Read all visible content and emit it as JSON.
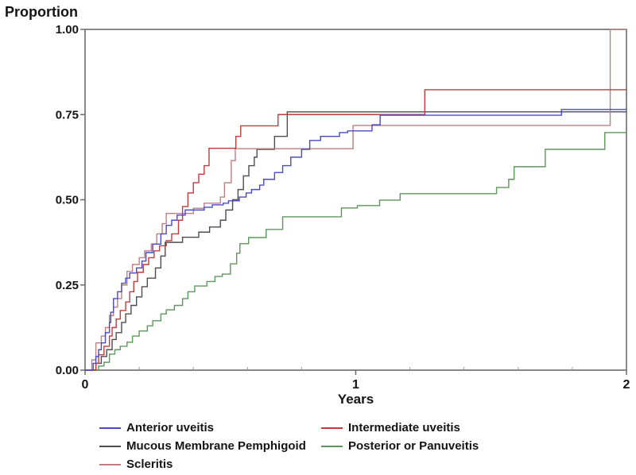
{
  "chart": {
    "axis_color": "#6a6a6a",
    "minor_tick_color": "#9a9a9a",
    "text_color": "#141414",
    "y_ticks": [
      {
        "label": "0.00",
        "value": 0.0
      },
      {
        "label": "0.25",
        "value": 0.25
      },
      {
        "label": "0.50",
        "value": 0.5
      },
      {
        "label": "0.75",
        "value": 0.75
      },
      {
        "label": "1.00",
        "value": 1.0
      }
    ],
    "x_ticks_major": [
      {
        "label": "0",
        "value": 0
      },
      {
        "label": "1",
        "value": 1
      },
      {
        "label": "2",
        "value": 2
      }
    ],
    "x_minor_ticks": [
      0.2,
      0.4,
      0.6,
      0.8,
      1.2,
      1.4,
      1.6,
      1.8
    ]
  },
  "chart_data": {
    "type": "line",
    "subtype": "step-after",
    "title": "",
    "xlabel": "Years",
    "ylabel": "Proportion",
    "xlim": [
      0,
      2
    ],
    "ylim": [
      0,
      1
    ],
    "grid": false,
    "legend_position": "bottom",
    "series": [
      {
        "name": "Anterior uveitis",
        "color": "#4a4ac4",
        "points": [
          [
            0,
            0
          ],
          [
            0.03,
            0.02
          ],
          [
            0.04,
            0.04
          ],
          [
            0.05,
            0.06
          ],
          [
            0.06,
            0.08
          ],
          [
            0.075,
            0.11
          ],
          [
            0.09,
            0.14
          ],
          [
            0.095,
            0.17
          ],
          [
            0.105,
            0.21
          ],
          [
            0.12,
            0.23
          ],
          [
            0.135,
            0.255
          ],
          [
            0.15,
            0.27
          ],
          [
            0.165,
            0.285
          ],
          [
            0.19,
            0.3
          ],
          [
            0.21,
            0.32
          ],
          [
            0.225,
            0.345
          ],
          [
            0.25,
            0.37
          ],
          [
            0.28,
            0.4
          ],
          [
            0.3,
            0.425
          ],
          [
            0.32,
            0.44
          ],
          [
            0.34,
            0.455
          ],
          [
            0.37,
            0.47
          ],
          [
            0.44,
            0.478
          ],
          [
            0.47,
            0.485
          ],
          [
            0.51,
            0.49
          ],
          [
            0.53,
            0.497
          ],
          [
            0.57,
            0.508
          ],
          [
            0.595,
            0.52
          ],
          [
            0.615,
            0.53
          ],
          [
            0.645,
            0.543
          ],
          [
            0.66,
            0.56
          ],
          [
            0.7,
            0.58
          ],
          [
            0.73,
            0.6
          ],
          [
            0.76,
            0.625
          ],
          [
            0.8,
            0.648
          ],
          [
            0.83,
            0.674
          ],
          [
            0.87,
            0.686
          ],
          [
            0.94,
            0.697
          ],
          [
            0.97,
            0.702
          ],
          [
            1.06,
            0.72
          ],
          [
            1.09,
            0.748
          ],
          [
            1.76,
            0.765
          ],
          [
            2,
            0.765
          ]
        ]
      },
      {
        "name": "Intermediate uveitis",
        "color": "#c23b3b",
        "points": [
          [
            0,
            0
          ],
          [
            0.04,
            0.02
          ],
          [
            0.05,
            0.045
          ],
          [
            0.07,
            0.07
          ],
          [
            0.09,
            0.1
          ],
          [
            0.1,
            0.125
          ],
          [
            0.115,
            0.15
          ],
          [
            0.13,
            0.175
          ],
          [
            0.15,
            0.2
          ],
          [
            0.165,
            0.23
          ],
          [
            0.18,
            0.26
          ],
          [
            0.194,
            0.287
          ],
          [
            0.215,
            0.31
          ],
          [
            0.235,
            0.33
          ],
          [
            0.255,
            0.35
          ],
          [
            0.275,
            0.365
          ],
          [
            0.3,
            0.38
          ],
          [
            0.32,
            0.4
          ],
          [
            0.345,
            0.44
          ],
          [
            0.36,
            0.48
          ],
          [
            0.38,
            0.52
          ],
          [
            0.4,
            0.55
          ],
          [
            0.42,
            0.575
          ],
          [
            0.44,
            0.6
          ],
          [
            0.458,
            0.651
          ],
          [
            0.557,
            0.686
          ],
          [
            0.575,
            0.717
          ],
          [
            0.713,
            0.75
          ],
          [
            1.255,
            0.823
          ],
          [
            2,
            0.823
          ]
        ]
      },
      {
        "name": "Mucous Membrane Pemphigoid",
        "color": "#4d4d4d",
        "points": [
          [
            0,
            0
          ],
          [
            0.04,
            0.02
          ],
          [
            0.06,
            0.04
          ],
          [
            0.08,
            0.06
          ],
          [
            0.1,
            0.09
          ],
          [
            0.115,
            0.11
          ],
          [
            0.135,
            0.14
          ],
          [
            0.15,
            0.165
          ],
          [
            0.17,
            0.19
          ],
          [
            0.19,
            0.215
          ],
          [
            0.21,
            0.245
          ],
          [
            0.23,
            0.27
          ],
          [
            0.26,
            0.3
          ],
          [
            0.28,
            0.335
          ],
          [
            0.296,
            0.375
          ],
          [
            0.36,
            0.39
          ],
          [
            0.42,
            0.405
          ],
          [
            0.46,
            0.42
          ],
          [
            0.5,
            0.44
          ],
          [
            0.52,
            0.47
          ],
          [
            0.545,
            0.5
          ],
          [
            0.565,
            0.53
          ],
          [
            0.585,
            0.57
          ],
          [
            0.605,
            0.6
          ],
          [
            0.625,
            0.625
          ],
          [
            0.635,
            0.648
          ],
          [
            0.7,
            0.686
          ],
          [
            0.747,
            0.758
          ],
          [
            2,
            0.758
          ]
        ]
      },
      {
        "name": "Posterior or Panuveitis",
        "color": "#5d975d",
        "points": [
          [
            0,
            0
          ],
          [
            0.05,
            0.012
          ],
          [
            0.07,
            0.023
          ],
          [
            0.09,
            0.047
          ],
          [
            0.11,
            0.06
          ],
          [
            0.13,
            0.07
          ],
          [
            0.155,
            0.082
          ],
          [
            0.175,
            0.1
          ],
          [
            0.2,
            0.115
          ],
          [
            0.23,
            0.13
          ],
          [
            0.25,
            0.145
          ],
          [
            0.28,
            0.165
          ],
          [
            0.3,
            0.177
          ],
          [
            0.33,
            0.19
          ],
          [
            0.36,
            0.21
          ],
          [
            0.38,
            0.23
          ],
          [
            0.405,
            0.247
          ],
          [
            0.45,
            0.26
          ],
          [
            0.48,
            0.275
          ],
          [
            0.507,
            0.282
          ],
          [
            0.537,
            0.312
          ],
          [
            0.56,
            0.343
          ],
          [
            0.572,
            0.371
          ],
          [
            0.604,
            0.389
          ],
          [
            0.669,
            0.413
          ],
          [
            0.73,
            0.45
          ],
          [
            0.947,
            0.476
          ],
          [
            1.006,
            0.483
          ],
          [
            1.088,
            0.499
          ],
          [
            1.164,
            0.518
          ],
          [
            1.52,
            0.536
          ],
          [
            1.565,
            0.56
          ],
          [
            1.585,
            0.597
          ],
          [
            1.7,
            0.648
          ],
          [
            1.92,
            0.697
          ],
          [
            2,
            0.697
          ]
        ]
      },
      {
        "name": "Scleritis",
        "color": "#bd7f7f",
        "points": [
          [
            0,
            0
          ],
          [
            0.025,
            0.03
          ],
          [
            0.04,
            0.08
          ],
          [
            0.06,
            0.1
          ],
          [
            0.075,
            0.125
          ],
          [
            0.09,
            0.16
          ],
          [
            0.105,
            0.185
          ],
          [
            0.12,
            0.21
          ],
          [
            0.135,
            0.25
          ],
          [
            0.155,
            0.29
          ],
          [
            0.175,
            0.31
          ],
          [
            0.2,
            0.33
          ],
          [
            0.22,
            0.35
          ],
          [
            0.245,
            0.37
          ],
          [
            0.265,
            0.4
          ],
          [
            0.285,
            0.43
          ],
          [
            0.3,
            0.46
          ],
          [
            0.4,
            0.475
          ],
          [
            0.44,
            0.49
          ],
          [
            0.5,
            0.508
          ],
          [
            0.515,
            0.55
          ],
          [
            0.54,
            0.615
          ],
          [
            0.555,
            0.65
          ],
          [
            0.99,
            0.718
          ],
          [
            1.94,
            1.0
          ],
          [
            2,
            1.0
          ]
        ]
      }
    ]
  },
  "legend": {
    "left_column_series": [
      0,
      2,
      4
    ],
    "right_column_series": [
      1,
      3
    ]
  }
}
